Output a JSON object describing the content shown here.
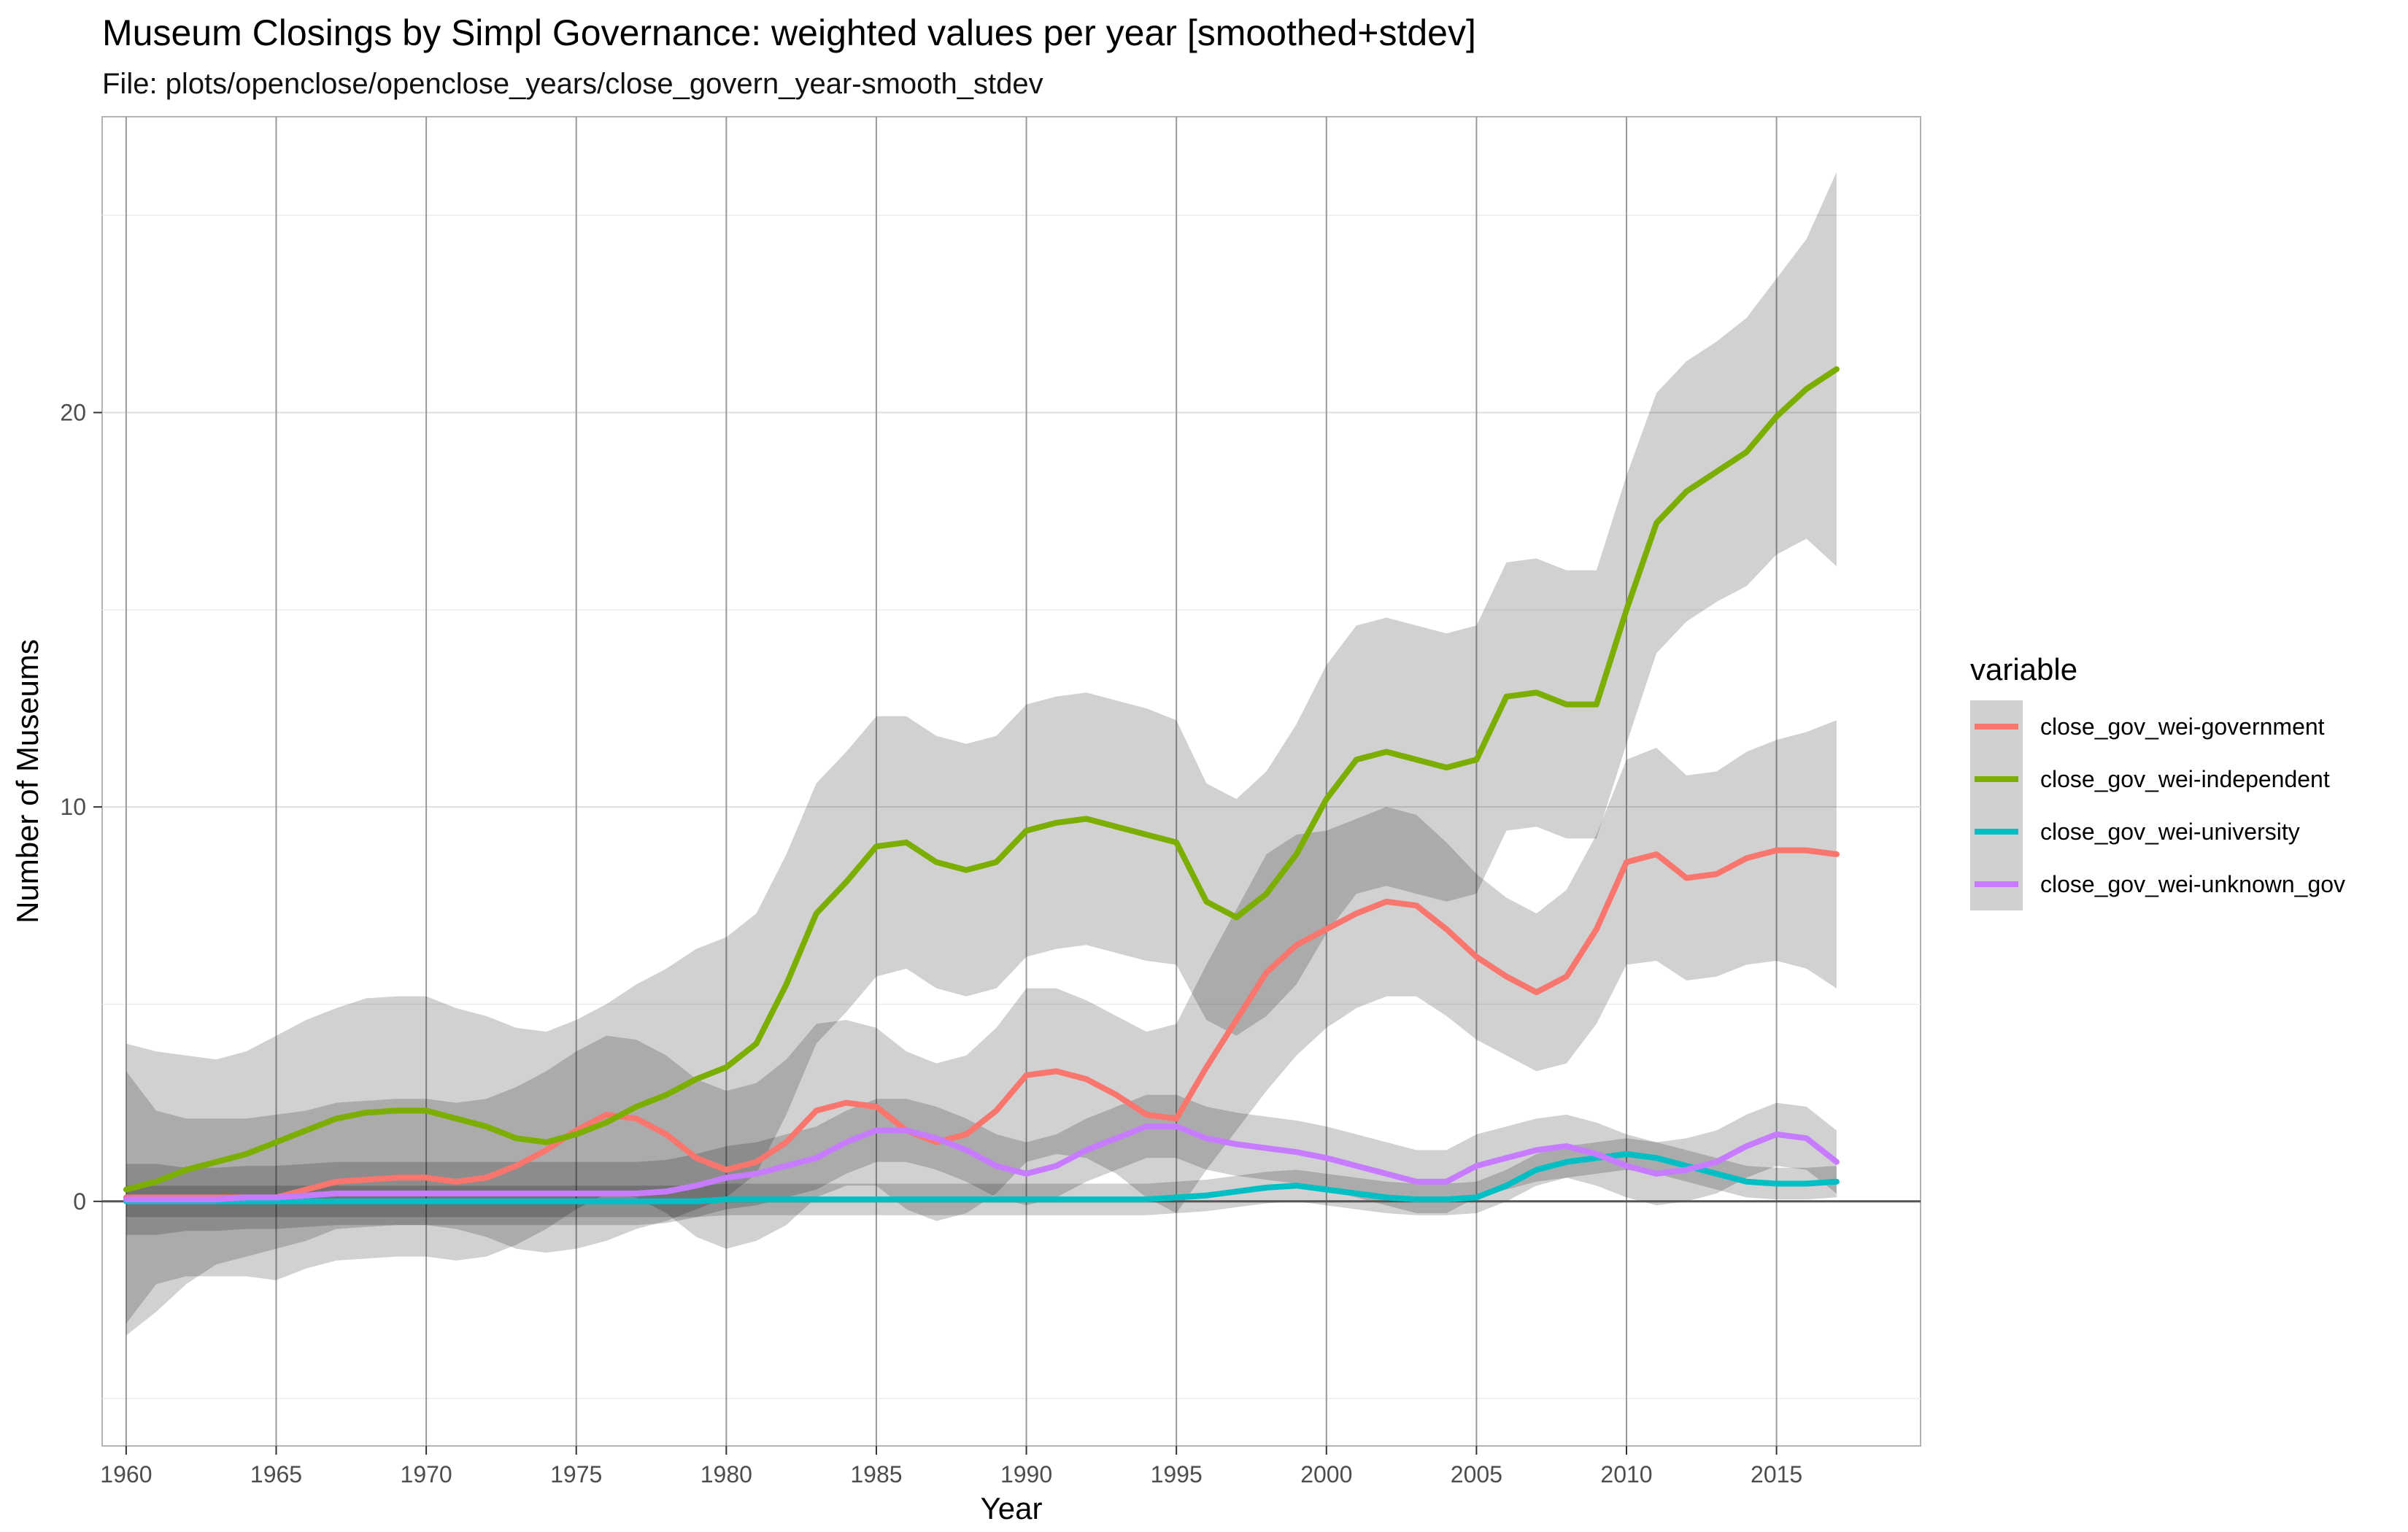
{
  "chart_data": {
    "type": "line",
    "title": "Museum Closings by Simpl Governance: weighted values per year [smoothed+stdev]",
    "subtitle": "File: plots/openclose/openclose_years/close_govern_year-smooth_stdev",
    "xlabel": "Year",
    "ylabel": "Number of Museums",
    "xlim": [
      1959.2,
      2019.8
    ],
    "ylim": [
      -6.2,
      27.5
    ],
    "x_ticks": [
      1960,
      1965,
      1970,
      1975,
      1980,
      1985,
      1990,
      1995,
      2000,
      2005,
      2010,
      2015
    ],
    "y_ticks": [
      0,
      10,
      20
    ],
    "grid": true,
    "legend_position": "right",
    "legend_title": "variable",
    "x": [
      1960,
      1961,
      1962,
      1963,
      1964,
      1965,
      1966,
      1967,
      1968,
      1969,
      1970,
      1971,
      1972,
      1973,
      1974,
      1975,
      1976,
      1977,
      1978,
      1979,
      1980,
      1981,
      1982,
      1983,
      1984,
      1985,
      1986,
      1987,
      1988,
      1989,
      1990,
      1991,
      1992,
      1993,
      1994,
      1995,
      1996,
      1997,
      1998,
      1999,
      2000,
      2001,
      2002,
      2003,
      2004,
      2005,
      2006,
      2007,
      2008,
      2009,
      2010,
      2011,
      2012,
      2013,
      2014,
      2015,
      2016,
      2017
    ],
    "series": [
      {
        "name": "close_gov_wei-government",
        "color": "#f8766d",
        "values": [
          0.1,
          0.1,
          0.1,
          0.1,
          0.1,
          0.1,
          0.3,
          0.5,
          0.55,
          0.6,
          0.6,
          0.5,
          0.6,
          0.9,
          1.3,
          1.8,
          2.2,
          2.1,
          1.7,
          1.1,
          0.8,
          1.0,
          1.5,
          2.3,
          2.5,
          2.4,
          1.8,
          1.5,
          1.7,
          2.3,
          3.2,
          3.3,
          3.1,
          2.7,
          2.2,
          2.1,
          3.4,
          4.6,
          5.8,
          6.5,
          6.9,
          7.3,
          7.6,
          7.5,
          6.9,
          6.2,
          5.7,
          5.3,
          5.7,
          6.9,
          8.6,
          8.8,
          8.2,
          8.3,
          8.7,
          8.9,
          8.9,
          8.8
        ],
        "band_half_width": [
          3.2,
          2.2,
          2.0,
          2.0,
          2.0,
          2.1,
          2.0,
          2.0,
          2.0,
          2.0,
          2.0,
          2.0,
          2.0,
          2.0,
          2.0,
          2.0,
          2.0,
          2.0,
          2.0,
          2.0,
          2.0,
          2.0,
          2.1,
          2.2,
          2.1,
          2.0,
          2.0,
          2.0,
          2.0,
          2.1,
          2.2,
          2.1,
          2.0,
          2.0,
          2.1,
          2.4,
          2.6,
          2.8,
          3.0,
          2.8,
          2.5,
          2.4,
          2.4,
          2.3,
          2.2,
          2.1,
          2.0,
          2.0,
          2.2,
          2.4,
          2.6,
          2.7,
          2.6,
          2.6,
          2.7,
          2.8,
          3.0,
          3.4
        ]
      },
      {
        "name": "close_gov_wei-independent",
        "color": "#7cae00",
        "values": [
          0.3,
          0.5,
          0.8,
          1.0,
          1.2,
          1.5,
          1.8,
          2.1,
          2.25,
          2.3,
          2.3,
          2.1,
          1.9,
          1.6,
          1.5,
          1.7,
          2.0,
          2.4,
          2.7,
          3.1,
          3.4,
          4.0,
          5.5,
          7.3,
          8.1,
          9.0,
          9.1,
          8.6,
          8.4,
          8.6,
          9.4,
          9.6,
          9.7,
          9.5,
          9.3,
          9.1,
          7.6,
          7.2,
          7.8,
          8.8,
          10.2,
          11.2,
          11.4,
          11.2,
          11.0,
          11.2,
          12.8,
          12.9,
          12.6,
          12.6,
          15.0,
          17.2,
          18.0,
          18.5,
          19.0,
          19.9,
          20.6,
          21.1
        ],
        "band_half_width": [
          3.7,
          3.3,
          2.9,
          2.6,
          2.6,
          2.7,
          2.8,
          2.8,
          2.9,
          2.9,
          2.9,
          2.8,
          2.8,
          2.8,
          2.8,
          2.9,
          3.0,
          3.1,
          3.2,
          3.3,
          3.3,
          3.3,
          3.3,
          3.3,
          3.3,
          3.3,
          3.2,
          3.2,
          3.2,
          3.2,
          3.2,
          3.2,
          3.2,
          3.2,
          3.2,
          3.1,
          3.0,
          3.0,
          3.1,
          3.3,
          3.4,
          3.4,
          3.4,
          3.4,
          3.4,
          3.4,
          3.4,
          3.4,
          3.4,
          3.4,
          3.4,
          3.3,
          3.3,
          3.3,
          3.4,
          3.5,
          3.8,
          5.0
        ]
      },
      {
        "name": "close_gov_wei-university",
        "color": "#00bfc4",
        "values": [
          0.0,
          0.0,
          0.0,
          0.0,
          0.0,
          0.0,
          0.0,
          0.0,
          0.0,
          0.0,
          0.0,
          0.0,
          0.0,
          0.0,
          0.0,
          0.0,
          0.0,
          0.0,
          0.0,
          0.0,
          0.05,
          0.05,
          0.05,
          0.05,
          0.05,
          0.05,
          0.05,
          0.05,
          0.05,
          0.05,
          0.05,
          0.05,
          0.05,
          0.05,
          0.05,
          0.1,
          0.15,
          0.25,
          0.35,
          0.4,
          0.3,
          0.2,
          0.1,
          0.05,
          0.05,
          0.1,
          0.4,
          0.8,
          1.0,
          1.1,
          1.2,
          1.1,
          0.9,
          0.7,
          0.5,
          0.45,
          0.45,
          0.5
        ],
        "band_half_width": [
          0.4,
          0.4,
          0.4,
          0.4,
          0.4,
          0.4,
          0.4,
          0.4,
          0.4,
          0.4,
          0.4,
          0.4,
          0.4,
          0.4,
          0.4,
          0.4,
          0.4,
          0.4,
          0.4,
          0.4,
          0.4,
          0.4,
          0.4,
          0.4,
          0.4,
          0.4,
          0.4,
          0.4,
          0.4,
          0.4,
          0.4,
          0.4,
          0.4,
          0.4,
          0.4,
          0.4,
          0.4,
          0.4,
          0.4,
          0.4,
          0.4,
          0.4,
          0.4,
          0.4,
          0.4,
          0.4,
          0.4,
          0.4,
          0.4,
          0.4,
          0.4,
          0.4,
          0.4,
          0.4,
          0.4,
          0.4,
          0.4,
          0.4
        ]
      },
      {
        "name": "close_gov_wei-unknown_gov",
        "color": "#c77cff",
        "values": [
          0.05,
          0.05,
          0.05,
          0.05,
          0.1,
          0.1,
          0.15,
          0.2,
          0.2,
          0.2,
          0.2,
          0.2,
          0.2,
          0.2,
          0.2,
          0.2,
          0.2,
          0.2,
          0.25,
          0.4,
          0.6,
          0.7,
          0.9,
          1.1,
          1.5,
          1.8,
          1.8,
          1.6,
          1.3,
          0.9,
          0.7,
          0.9,
          1.3,
          1.6,
          1.9,
          1.9,
          1.6,
          1.45,
          1.35,
          1.25,
          1.1,
          0.9,
          0.7,
          0.5,
          0.5,
          0.9,
          1.1,
          1.3,
          1.4,
          1.2,
          0.9,
          0.7,
          0.8,
          1.0,
          1.4,
          1.7,
          1.6,
          1.0
        ],
        "band_half_width": [
          0.9,
          0.9,
          0.8,
          0.8,
          0.8,
          0.8,
          0.8,
          0.8,
          0.8,
          0.8,
          0.8,
          0.8,
          0.8,
          0.8,
          0.8,
          0.8,
          0.8,
          0.8,
          0.8,
          0.8,
          0.8,
          0.8,
          0.8,
          0.8,
          0.8,
          0.8,
          0.8,
          0.8,
          0.8,
          0.8,
          0.8,
          0.8,
          0.8,
          0.8,
          0.8,
          0.8,
          0.8,
          0.8,
          0.8,
          0.8,
          0.8,
          0.8,
          0.8,
          0.8,
          0.8,
          0.8,
          0.8,
          0.8,
          0.8,
          0.8,
          0.8,
          0.8,
          0.8,
          0.8,
          0.8,
          0.8,
          0.8,
          0.8
        ]
      }
    ]
  }
}
